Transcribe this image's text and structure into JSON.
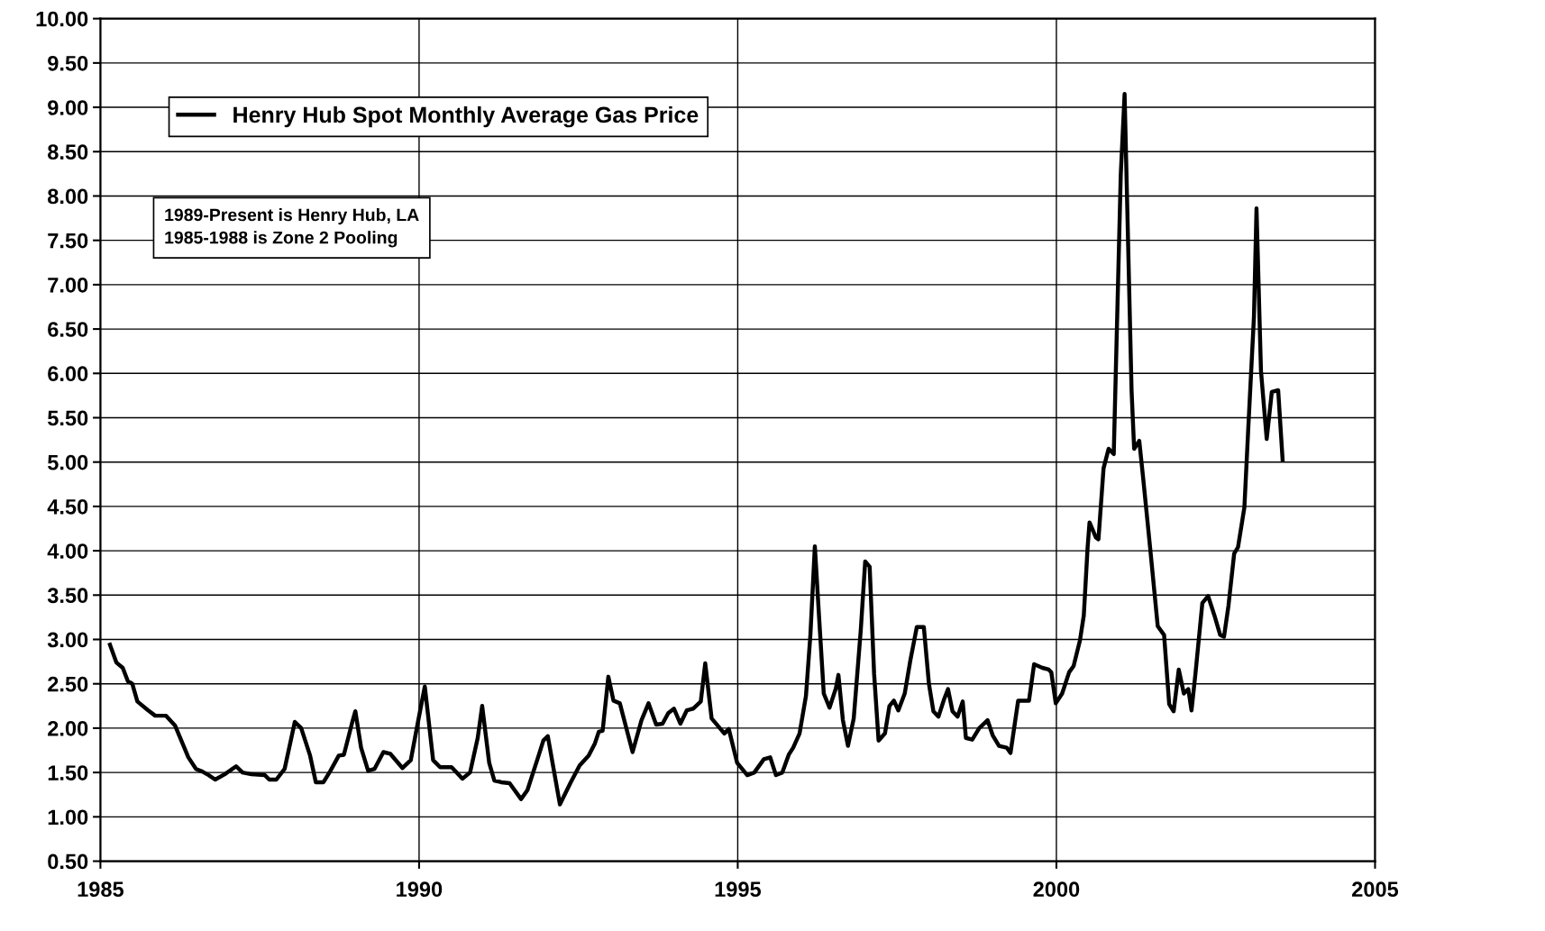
{
  "chart_data": {
    "type": "line",
    "xlim": [
      1985,
      2005
    ],
    "xticks": [
      1985,
      1990,
      1995,
      2000,
      2005
    ],
    "ylim": [
      0.5,
      10
    ],
    "yticks": [
      {
        "value": 0.5,
        "label": "0.50"
      },
      {
        "value": 1.0,
        "label": "1.00"
      },
      {
        "value": 1.5,
        "label": "1.50"
      },
      {
        "value": 2.0,
        "label": "2.00"
      },
      {
        "value": 2.5,
        "label": "2.50"
      },
      {
        "value": 3.0,
        "label": "3.00"
      },
      {
        "value": 3.5,
        "label": "3.50"
      },
      {
        "value": 4.0,
        "label": "4.00"
      },
      {
        "value": 4.5,
        "label": "4.50"
      },
      {
        "value": 5.0,
        "label": "5.00"
      },
      {
        "value": 5.5,
        "label": "5.50"
      },
      {
        "value": 6.0,
        "label": "6.00"
      },
      {
        "value": 6.5,
        "label": "6.50"
      },
      {
        "value": 7.0,
        "label": "7.00"
      },
      {
        "value": 7.5,
        "label": "7.50"
      },
      {
        "value": 8.0,
        "label": "8.00"
      },
      {
        "value": 8.5,
        "label": "8.50"
      },
      {
        "value": 9.0,
        "label": "9.00"
      },
      {
        "value": 9.5,
        "label": "9.50"
      },
      {
        "value": 10.0,
        "label": "10.00"
      }
    ],
    "grid": true,
    "legend": "top left",
    "marker": "none",
    "line_style": "solid",
    "annotations": [
      "1989-Present is Henry Hub, LA",
      "1985-1988 is Zone 2 Pooling"
    ],
    "series": [
      {
        "name": "Henry Hub Spot Monthly Average Gas Price",
        "color": "#000000",
        "x": [
          1985.15,
          1985.25,
          1985.35,
          1985.43,
          1985.5,
          1985.58,
          1985.75,
          1985.86,
          1986.03,
          1986.17,
          1986.38,
          1986.5,
          1986.6,
          1986.7,
          1986.8,
          1986.95,
          1987.13,
          1987.23,
          1987.37,
          1987.58,
          1987.65,
          1987.76,
          1987.89,
          1988.05,
          1988.15,
          1988.29,
          1988.38,
          1988.5,
          1988.61,
          1988.74,
          1988.82,
          1988.96,
          1989.0,
          1989.09,
          1989.2,
          1989.3,
          1989.44,
          1989.55,
          1989.74,
          1989.87,
          1989.98,
          1990.09,
          1990.22,
          1990.33,
          1990.51,
          1990.68,
          1990.8,
          1990.92,
          1990.99,
          1991.1,
          1991.18,
          1991.29,
          1991.42,
          1991.6,
          1991.7,
          1991.88,
          1991.95,
          1992.02,
          1992.21,
          1992.38,
          1992.52,
          1992.66,
          1992.76,
          1992.82,
          1992.88,
          1992.97,
          1993.05,
          1993.15,
          1993.35,
          1993.49,
          1993.6,
          1993.72,
          1993.82,
          1993.91,
          1994.0,
          1994.1,
          1994.2,
          1994.3,
          1994.42,
          1994.49,
          1994.59,
          1994.79,
          1994.86,
          1994.99,
          1995.15,
          1995.26,
          1995.41,
          1995.51,
          1995.6,
          1995.7,
          1995.8,
          1995.87,
          1995.97,
          1996.07,
          1996.14,
          1996.21,
          1996.28,
          1996.35,
          1996.44,
          1996.54,
          1996.58,
          1996.65,
          1996.73,
          1996.82,
          1996.93,
          1997.0,
          1997.07,
          1997.14,
          1997.21,
          1997.31,
          1997.38,
          1997.45,
          1997.52,
          1997.62,
          1997.71,
          1997.81,
          1997.92,
          1998.0,
          1998.07,
          1998.15,
          1998.24,
          1998.3,
          1998.37,
          1998.45,
          1998.53,
          1998.58,
          1998.68,
          1998.79,
          1998.92,
          1999.0,
          1999.1,
          1999.22,
          1999.28,
          1999.4,
          1999.5,
          1999.57,
          1999.65,
          1999.78,
          1999.88,
          1999.92,
          1999.99,
          2000.09,
          2000.2,
          2000.27,
          2000.37,
          2000.43,
          2000.49,
          2000.52,
          2000.62,
          2000.66,
          2000.74,
          2000.82,
          2000.9,
          2001.01,
          2001.07,
          2001.18,
          2001.22,
          2001.3,
          2001.36,
          2001.47,
          2001.59,
          2001.69,
          2001.77,
          2001.84,
          2001.92,
          2002.0,
          2002.07,
          2002.12,
          2002.18,
          2002.29,
          2002.38,
          2002.48,
          2002.57,
          2002.63,
          2002.7,
          2002.79,
          2002.85,
          2002.95,
          2003.01,
          2003.1,
          2003.14,
          2003.21,
          2003.3,
          2003.38,
          2003.48,
          2003.55
        ],
        "values": [
          2.94,
          2.74,
          2.68,
          2.53,
          2.5,
          2.3,
          2.2,
          2.14,
          2.14,
          2.03,
          1.67,
          1.54,
          1.51,
          1.47,
          1.42,
          1.48,
          1.57,
          1.5,
          1.48,
          1.47,
          1.42,
          1.42,
          1.54,
          2.07,
          2.0,
          1.69,
          1.39,
          1.39,
          1.52,
          1.69,
          1.7,
          2.09,
          2.19,
          1.78,
          1.52,
          1.54,
          1.73,
          1.71,
          1.55,
          1.64,
          2.06,
          2.47,
          1.64,
          1.56,
          1.56,
          1.43,
          1.5,
          1.89,
          2.25,
          1.61,
          1.41,
          1.39,
          1.38,
          1.2,
          1.3,
          1.7,
          1.86,
          1.91,
          1.14,
          1.39,
          1.58,
          1.69,
          1.83,
          1.96,
          1.97,
          2.58,
          2.31,
          2.28,
          1.73,
          2.09,
          2.28,
          2.04,
          2.05,
          2.17,
          2.22,
          2.05,
          2.2,
          2.22,
          2.3,
          2.73,
          2.11,
          1.94,
          1.99,
          1.61,
          1.47,
          1.5,
          1.65,
          1.67,
          1.47,
          1.5,
          1.7,
          1.78,
          1.94,
          2.36,
          3.05,
          4.05,
          3.21,
          2.39,
          2.23,
          2.45,
          2.6,
          2.09,
          1.8,
          2.11,
          3.1,
          3.88,
          3.82,
          2.61,
          1.86,
          1.94,
          2.25,
          2.31,
          2.2,
          2.39,
          2.77,
          3.14,
          3.14,
          2.5,
          2.19,
          2.13,
          2.33,
          2.44,
          2.19,
          2.13,
          2.3,
          1.89,
          1.87,
          2.0,
          2.09,
          1.92,
          1.8,
          1.78,
          1.72,
          2.31,
          2.31,
          2.31,
          2.72,
          2.68,
          2.66,
          2.63,
          2.28,
          2.39,
          2.63,
          2.7,
          2.99,
          3.27,
          4.04,
          4.32,
          4.15,
          4.13,
          4.93,
          5.15,
          5.09,
          8.24,
          9.15,
          5.8,
          5.15,
          5.24,
          4.83,
          4.04,
          3.15,
          3.05,
          2.27,
          2.19,
          2.66,
          2.39,
          2.44,
          2.2,
          2.6,
          3.41,
          3.49,
          3.27,
          3.05,
          3.03,
          3.38,
          3.97,
          4.04,
          4.49,
          5.37,
          6.64,
          7.86,
          6.03,
          5.26,
          5.79,
          5.81,
          5.02
        ]
      }
    ]
  }
}
